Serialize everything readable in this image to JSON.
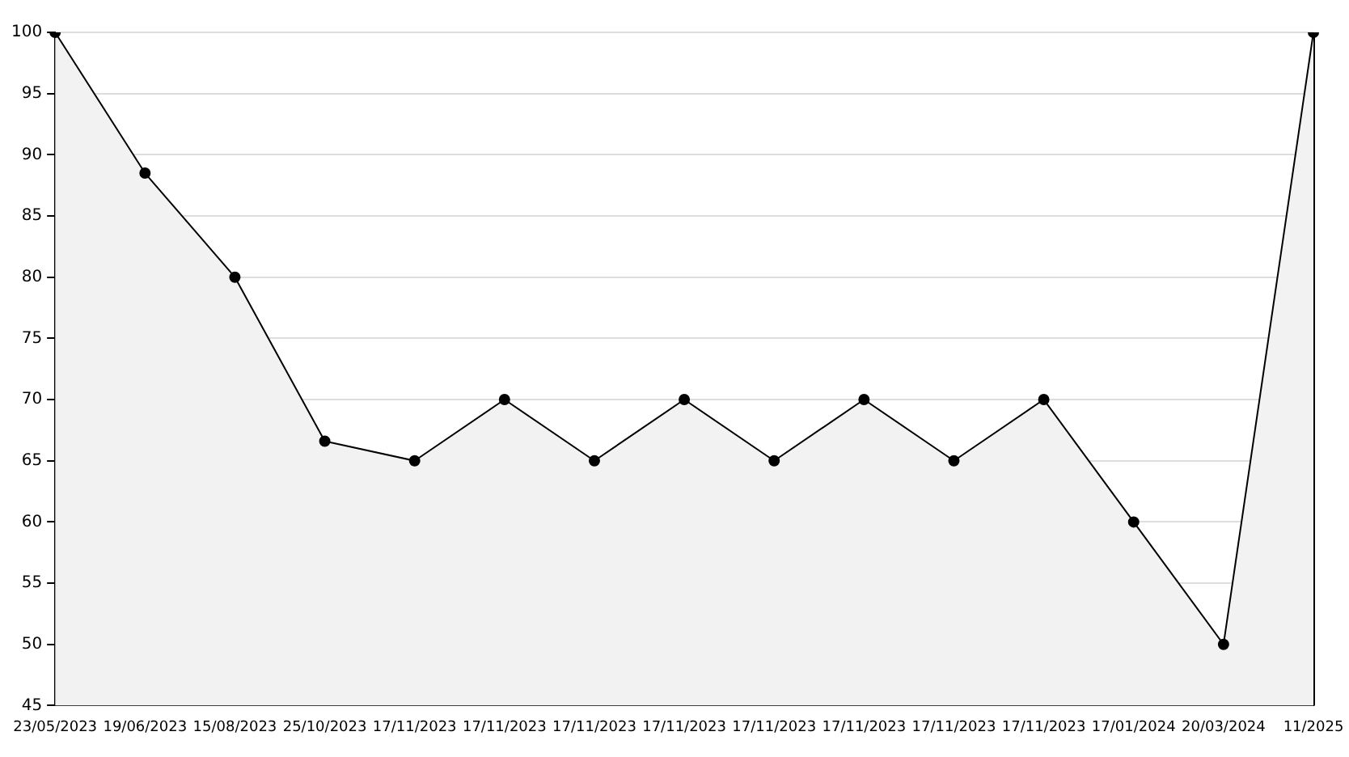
{
  "chart_data": {
    "type": "area",
    "categories": [
      "23/05/2023",
      "19/06/2023",
      "15/08/2023",
      "25/10/2023",
      "17/11/2023",
      "17/11/2023",
      "17/11/2023",
      "17/11/2023",
      "17/11/2023",
      "17/11/2023",
      "17/11/2023",
      "17/11/2023",
      "17/01/2024",
      "20/03/2024",
      "11/2025"
    ],
    "series": [
      {
        "color": "#000000",
        "values": [
          100,
          88.5,
          80,
          66.6,
          65,
          70,
          65,
          70,
          65,
          70,
          65,
          70,
          60,
          50,
          100
        ]
      }
    ],
    "ylim": [
      45,
      100
    ],
    "yticks": [
      45,
      50,
      55,
      60,
      65,
      70,
      75,
      80,
      85,
      90,
      95,
      100
    ],
    "grid": "y",
    "legend": false,
    "marker": "circle",
    "line_style": "solid"
  }
}
